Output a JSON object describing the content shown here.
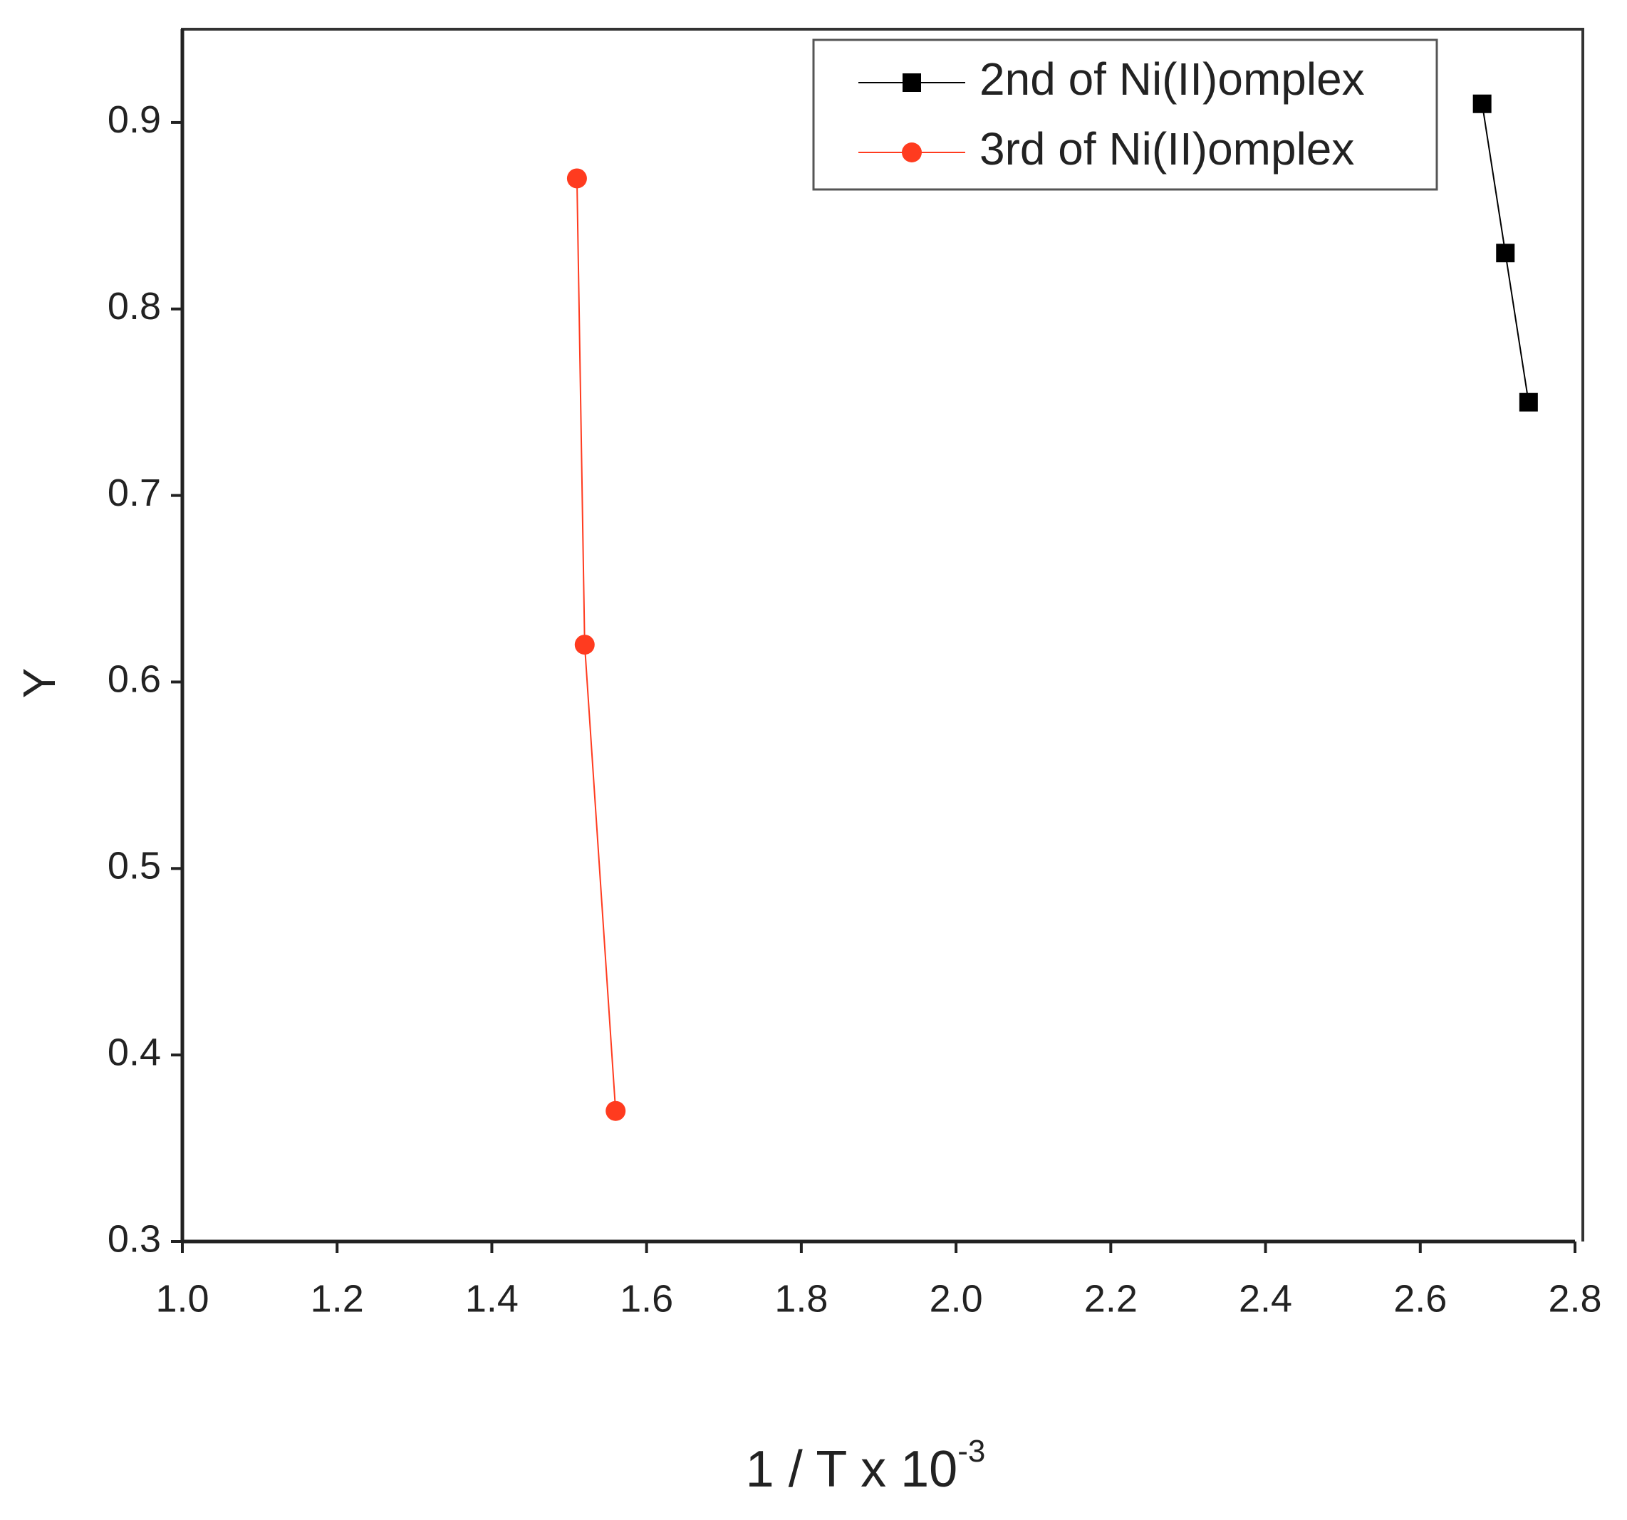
{
  "chart_data": {
    "type": "line",
    "x_label": "1 / T x 10",
    "x_label_exponent": "-3",
    "y_label": "Y",
    "series": [
      {
        "name": "2nd of Ni(II)omplex",
        "color": "#000000",
        "marker": "square",
        "x": [
          2.68,
          2.71,
          2.74
        ],
        "values": [
          0.91,
          0.83,
          0.75
        ]
      },
      {
        "name": "3rd of Ni(II)omplex",
        "color": "#ff3b1f",
        "marker": "circle",
        "x": [
          1.51,
          1.52,
          1.56
        ],
        "values": [
          0.87,
          0.62,
          0.37
        ]
      }
    ],
    "xlim": [
      1.0,
      2.8
    ],
    "xticks": [
      {
        "value": 1,
        "label": "1.0"
      },
      1.2,
      1.4,
      1.6,
      1.8,
      {
        "value": 2,
        "label": "2.0"
      },
      2.2,
      2.4,
      2.6,
      2.8
    ],
    "ylim": [
      0.3,
      0.95
    ],
    "yticks": [
      0.3,
      0.4,
      0.5,
      0.6,
      0.7,
      0.8,
      0.9
    ],
    "grid": false,
    "legend": "top-right"
  }
}
